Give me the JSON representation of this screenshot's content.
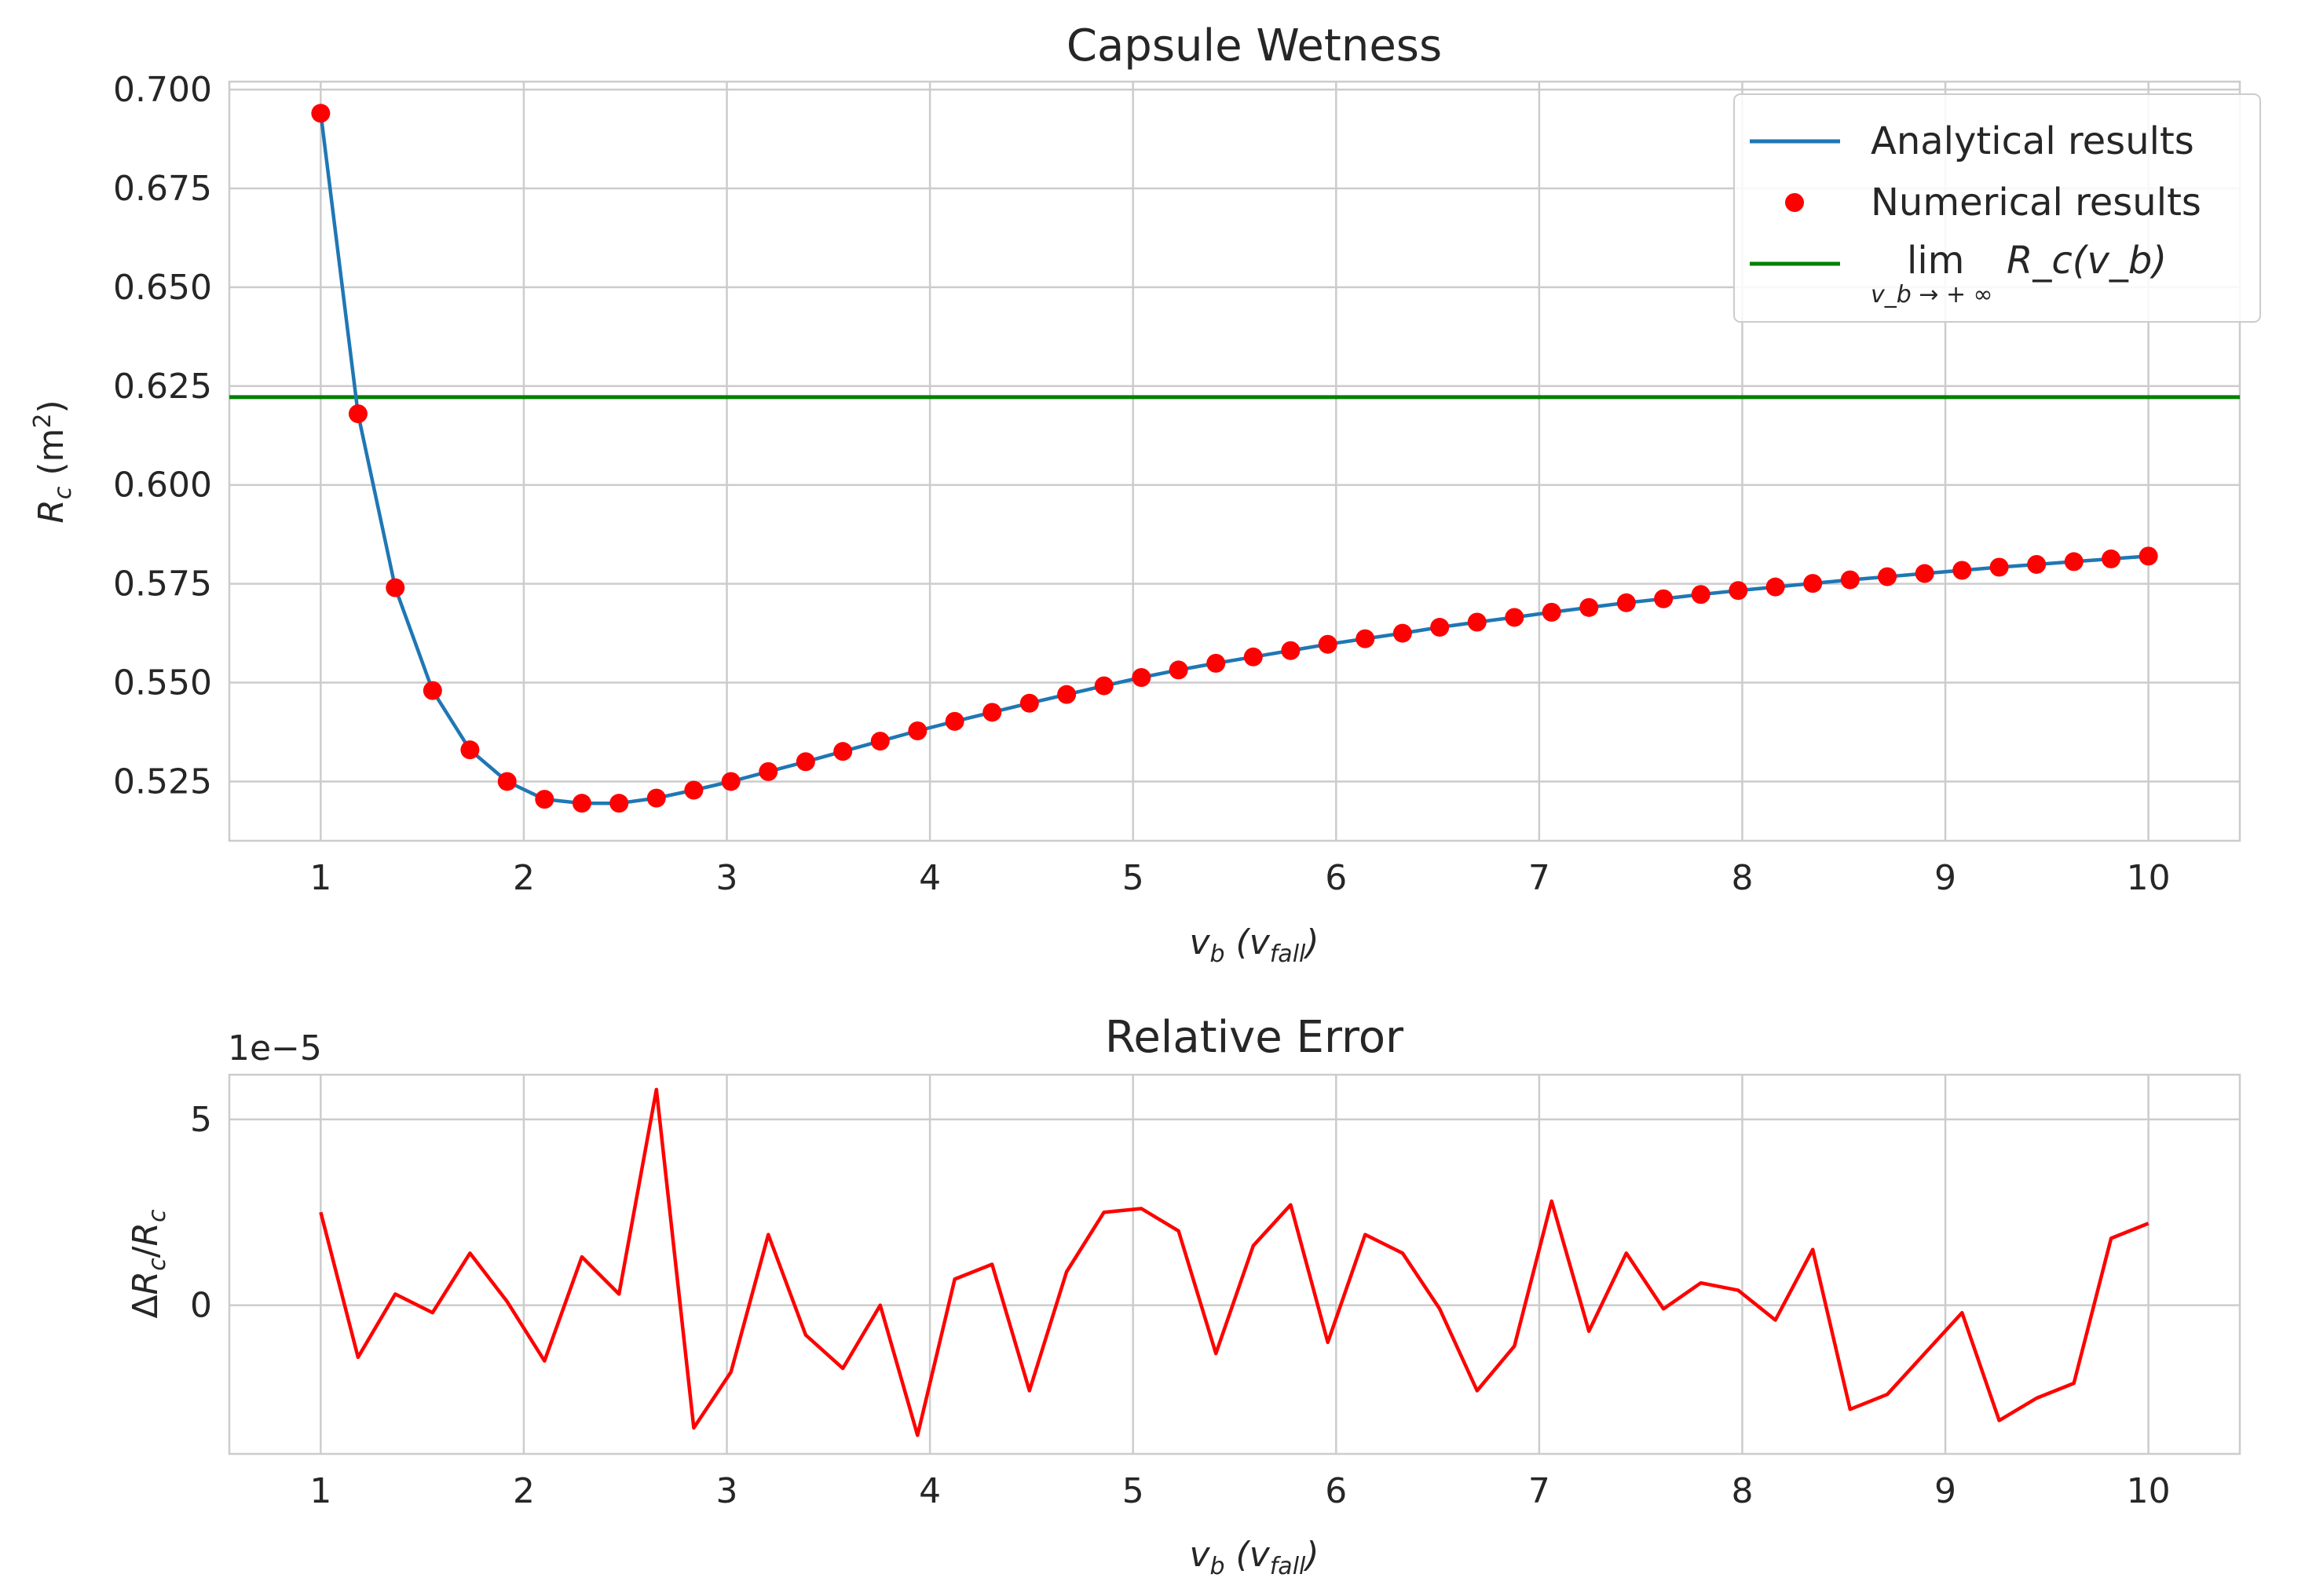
{
  "chart_data": [
    {
      "type": "line",
      "title": "Capsule Wetness",
      "xlabel": "v_b (v_fall)",
      "ylabel": "R_c (m²)",
      "xlim": [
        0.55,
        10.45
      ],
      "ylim": [
        0.51,
        0.702
      ],
      "xticks": [
        1,
        2,
        3,
        4,
        5,
        6,
        7,
        8,
        9,
        10
      ],
      "yticks": [
        0.525,
        0.55,
        0.575,
        0.6,
        0.625,
        0.65,
        0.675,
        0.7
      ],
      "ytick_labels": [
        "0.525",
        "0.550",
        "0.575",
        "0.600",
        "0.625",
        "0.650",
        "0.675",
        "0.700"
      ],
      "grid": true,
      "legend_position": "top-right",
      "x": [
        1.0,
        1.184,
        1.367,
        1.551,
        1.735,
        1.918,
        2.102,
        2.286,
        2.469,
        2.653,
        2.837,
        3.02,
        3.204,
        3.388,
        3.571,
        3.755,
        3.939,
        4.122,
        4.306,
        4.49,
        4.673,
        4.857,
        5.041,
        5.224,
        5.408,
        5.592,
        5.776,
        5.959,
        6.143,
        6.327,
        6.51,
        6.694,
        6.878,
        7.061,
        7.245,
        7.429,
        7.612,
        7.796,
        7.98,
        8.163,
        8.347,
        8.531,
        8.714,
        8.898,
        9.082,
        9.265,
        9.449,
        9.633,
        9.816,
        10.0
      ],
      "series": [
        {
          "name": "Analytical results",
          "kind": "line",
          "color": "#1f77b4",
          "values": [
            0.694,
            0.618,
            0.574,
            0.548,
            0.533,
            0.525,
            0.5205,
            0.5195,
            0.5195,
            0.5208,
            0.5228,
            0.525,
            0.5275,
            0.53,
            0.5326,
            0.5352,
            0.5378,
            0.5402,
            0.5425,
            0.5448,
            0.547,
            0.5492,
            0.5513,
            0.5532,
            0.5549,
            0.5565,
            0.5581,
            0.5597,
            0.5611,
            0.5625,
            0.564,
            0.5653,
            0.5665,
            0.5678,
            0.569,
            0.5702,
            0.5712,
            0.5723,
            0.5733,
            0.5742,
            0.5751,
            0.576,
            0.5768,
            0.5776,
            0.5784,
            0.5792,
            0.5799,
            0.5806,
            0.5813,
            0.582
          ]
        },
        {
          "name": "Numerical results",
          "kind": "scatter",
          "color": "#ff0000",
          "values": [
            0.694,
            0.618,
            0.574,
            0.548,
            0.533,
            0.525,
            0.5205,
            0.5195,
            0.5195,
            0.5208,
            0.5228,
            0.525,
            0.5275,
            0.53,
            0.5326,
            0.5352,
            0.5378,
            0.5402,
            0.5425,
            0.5448,
            0.547,
            0.5492,
            0.5513,
            0.5532,
            0.5549,
            0.5565,
            0.5581,
            0.5597,
            0.5611,
            0.5625,
            0.564,
            0.5653,
            0.5665,
            0.5678,
            0.569,
            0.5702,
            0.5712,
            0.5723,
            0.5733,
            0.5742,
            0.5751,
            0.576,
            0.5768,
            0.5776,
            0.5784,
            0.5792,
            0.5799,
            0.5806,
            0.5813,
            0.582
          ]
        }
      ],
      "hline": {
        "name": "lim R_c(v_b), v_b → +∞",
        "legend_lim": "lim",
        "legend_sub": "v_b → + ∞",
        "legend_expr": "R_c(v_b)",
        "value": 0.6222,
        "color": "#008000"
      }
    },
    {
      "type": "line",
      "title": "Relative Error",
      "xlabel": "v_b (v_fall)",
      "ylabel": "ΔR_c/R_c",
      "offset_text": "1e−5",
      "scale": 1e-05,
      "xlim": [
        0.55,
        10.45
      ],
      "ylim": [
        -4.0,
        6.2
      ],
      "xticks": [
        1,
        2,
        3,
        4,
        5,
        6,
        7,
        8,
        9,
        10
      ],
      "yticks": [
        0,
        5
      ],
      "ytick_labels": [
        "0",
        "5"
      ],
      "grid": true,
      "series": [
        {
          "kind": "line",
          "color": "#ff0000",
          "values": [
            2.5,
            -1.4,
            0.3,
            -0.2,
            1.4,
            0.1,
            -1.5,
            1.3,
            0.3,
            5.8,
            -3.3,
            -1.8,
            1.9,
            -0.8,
            -1.7,
            0.0,
            -3.5,
            0.7,
            1.1,
            -2.3,
            0.9,
            2.5,
            2.6,
            2.0,
            -1.3,
            1.6,
            2.7,
            -1.0,
            1.9,
            1.4,
            -0.1,
            -2.3,
            -1.1,
            2.8,
            -0.7,
            1.4,
            -0.1,
            0.6,
            0.4,
            -0.4,
            1.5,
            -2.8,
            -2.4,
            -1.3,
            -0.2,
            -3.1,
            -2.5,
            -2.1,
            1.8,
            2.2
          ]
        }
      ]
    }
  ]
}
